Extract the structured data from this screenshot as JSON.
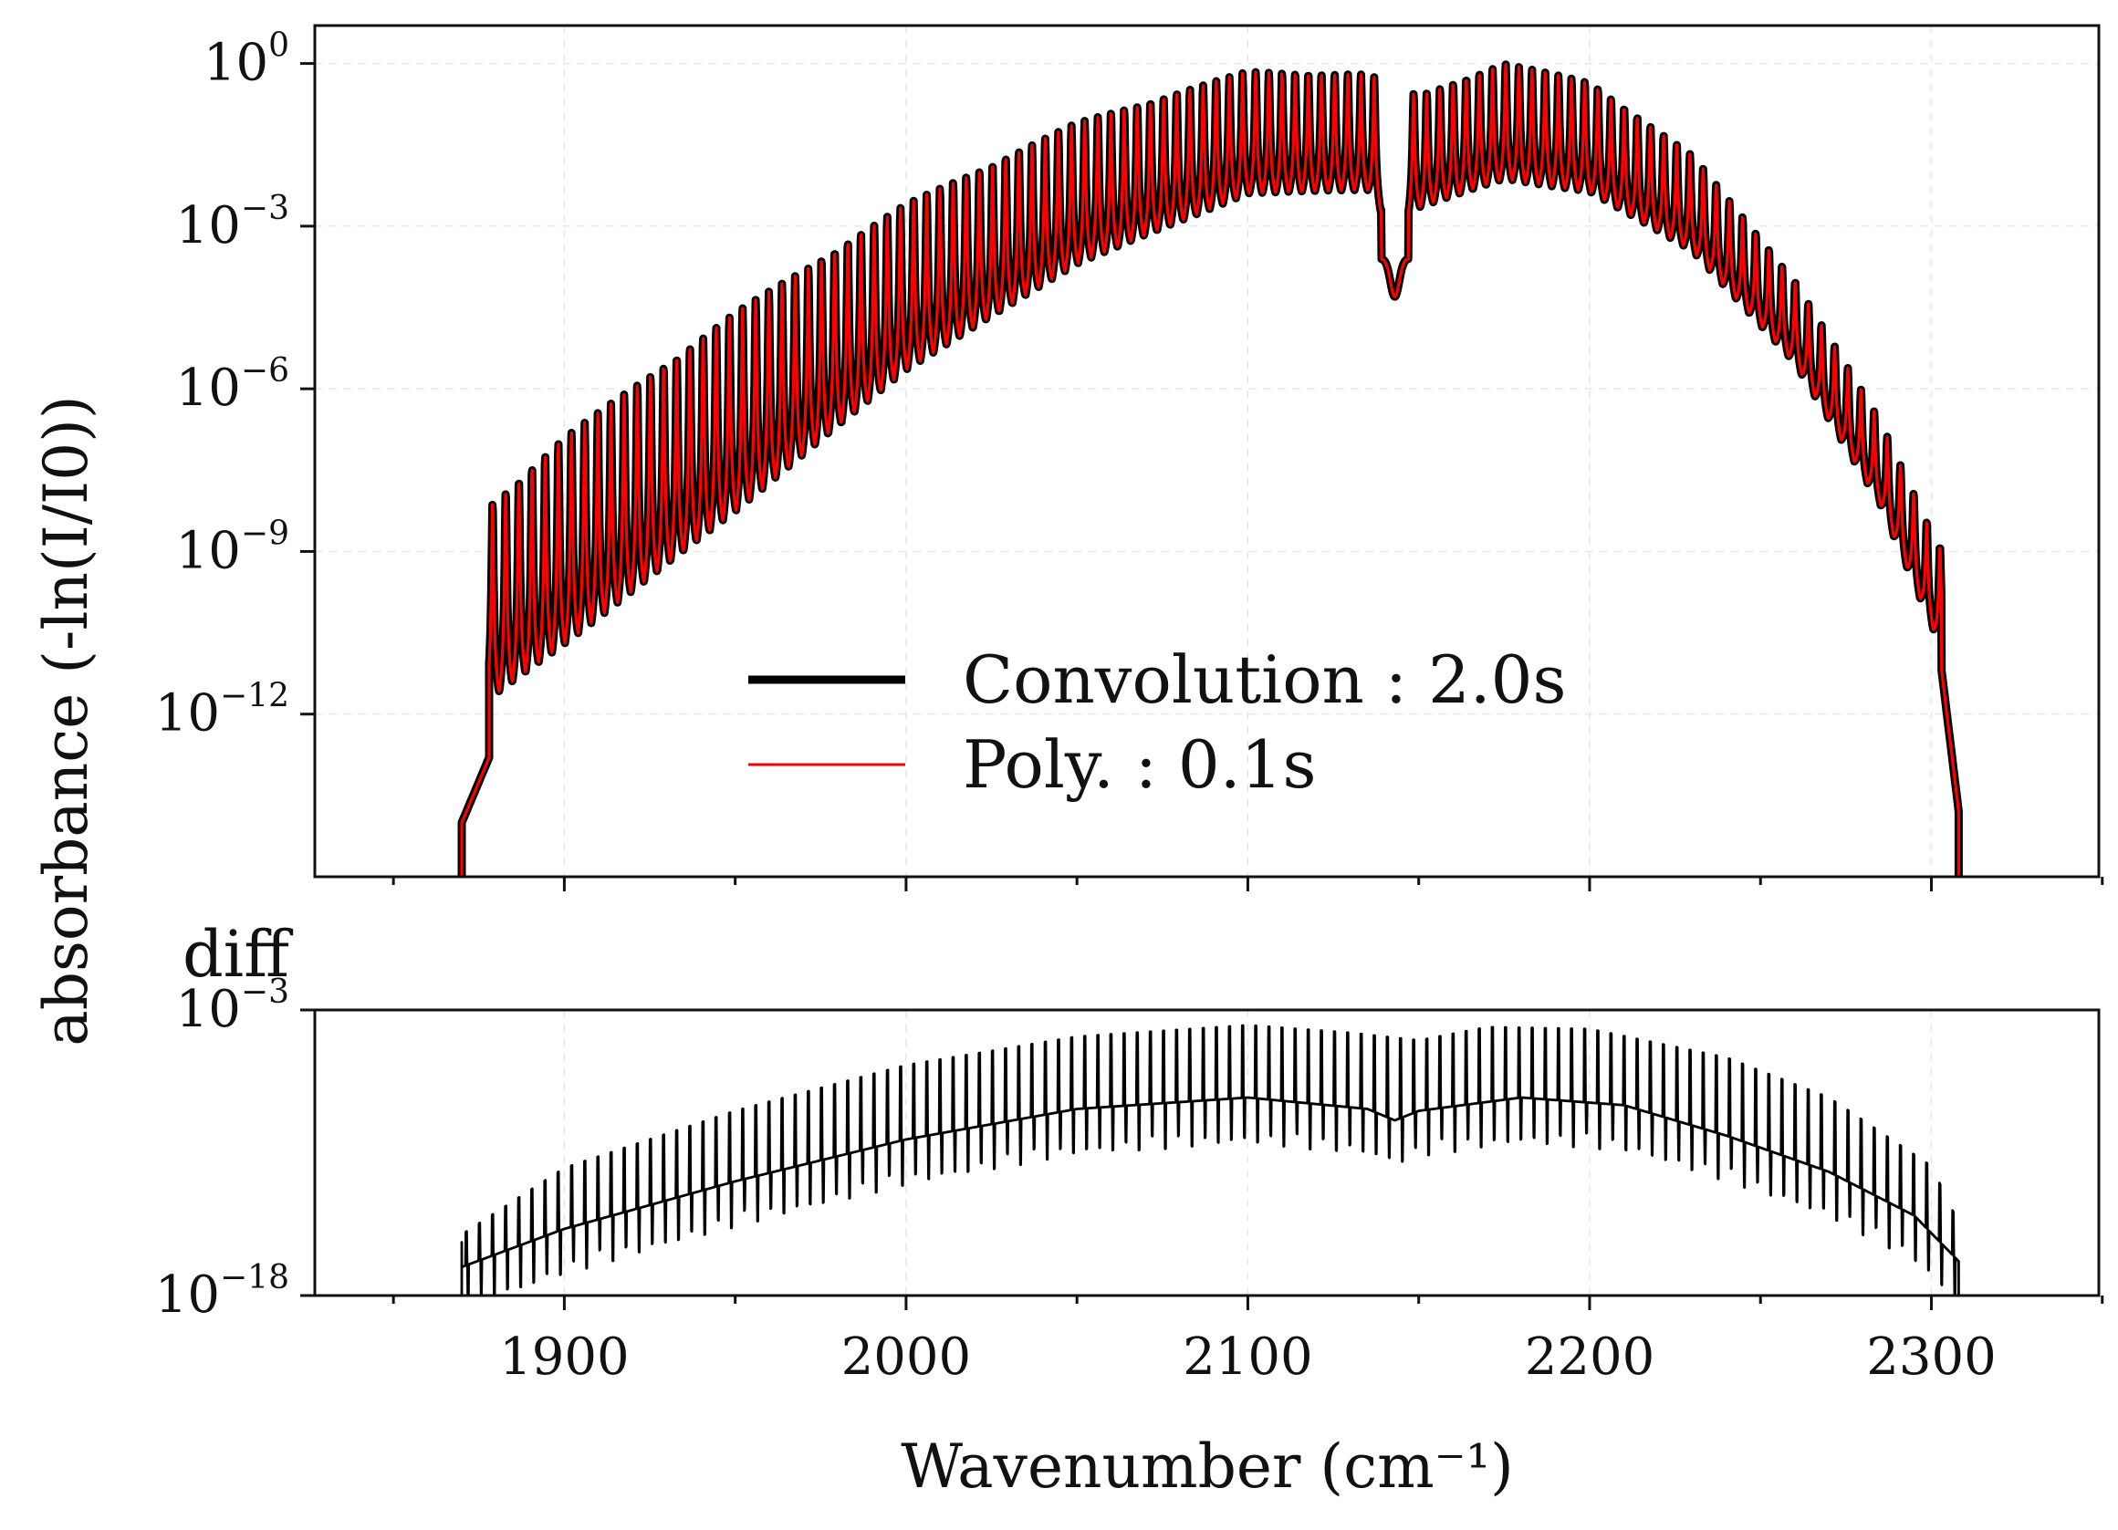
{
  "chart_data": [
    {
      "panel": "top",
      "type": "line",
      "ylabel": "absorbance (-ln(I/I0))",
      "y_scale": "log",
      "ylim_exponent": [
        -15,
        0.7
      ],
      "xlim": [
        1827,
        2349
      ],
      "x_ticks_shared": [
        1900,
        2000,
        2100,
        2200,
        2300
      ],
      "y_ticks": [
        {
          "base": "10",
          "exp": "0",
          "value": 1
        },
        {
          "base": "10",
          "exp": "−3",
          "value": 0.001
        },
        {
          "base": "10",
          "exp": "−6",
          "value": 1e-06
        },
        {
          "base": "10",
          "exp": "−9",
          "value": 1e-09
        },
        {
          "base": "10",
          "exp": "−12",
          "value": 1e-12
        }
      ],
      "grid": true,
      "legend_position": "lower-center",
      "series": [
        {
          "name": "Convolution : 2.0s",
          "color": "#000000",
          "linewidth": "thick"
        },
        {
          "name": "Poly. : 0.1s",
          "color": "#ff0000",
          "linewidth": "thin"
        }
      ],
      "band": {
        "description_values": "rovibrational absorption band, peak absorbance values (log10) per line",
        "line_spacing": 3.85,
        "band_center": 2143,
        "band_start": 1870,
        "band_end": 2308,
        "peak_envelope_log10": [
          {
            "x": 1879,
            "y": -8.1
          },
          {
            "x": 1900,
            "y": -6.9
          },
          {
            "x": 1950,
            "y": -4.6
          },
          {
            "x": 2000,
            "y": -2.6
          },
          {
            "x": 2050,
            "y": -1.1
          },
          {
            "x": 2100,
            "y": -0.15
          },
          {
            "x": 2135,
            "y": -0.2
          },
          {
            "x": 2150,
            "y": -0.6
          },
          {
            "x": 2175,
            "y": 0.0
          },
          {
            "x": 2200,
            "y": -0.35
          },
          {
            "x": 2230,
            "y": -1.7
          },
          {
            "x": 2260,
            "y": -4.0
          },
          {
            "x": 2285,
            "y": -6.6
          },
          {
            "x": 2302,
            "y": -8.9
          }
        ],
        "valley_envelope_log10": [
          {
            "x": 1879,
            "y": -12.8
          },
          {
            "x": 1900,
            "y": -11.9
          },
          {
            "x": 1950,
            "y": -9.4
          },
          {
            "x": 2000,
            "y": -6.6
          },
          {
            "x": 2050,
            "y": -4.5
          },
          {
            "x": 2100,
            "y": -3.1
          },
          {
            "x": 2135,
            "y": -3.0
          },
          {
            "x": 2143,
            "y": -4.0
          },
          {
            "x": 2150,
            "y": -3.3
          },
          {
            "x": 2175,
            "y": -2.8
          },
          {
            "x": 2200,
            "y": -3.0
          },
          {
            "x": 2230,
            "y": -4.0
          },
          {
            "x": 2260,
            "y": -6.0
          },
          {
            "x": 2285,
            "y": -8.6
          },
          {
            "x": 2302,
            "y": -11.2
          }
        ]
      }
    },
    {
      "panel": "bottom",
      "type": "line",
      "title": "diff",
      "xlabel": "Wavenumber (cm⁻¹)",
      "y_scale": "log",
      "ylim_exponent": [
        -18,
        -3
      ],
      "xlim": [
        1827,
        2349
      ],
      "x_ticks": [
        1900,
        2000,
        2100,
        2200,
        2300
      ],
      "y_ticks": [
        {
          "base": "10",
          "exp": "−3",
          "value": 0.001
        },
        {
          "base": "10",
          "exp": "−18",
          "value": 1e-18
        }
      ],
      "grid": true,
      "series": [
        {
          "color": "#000000",
          "baseline_log10": [
            {
              "x": 1870,
              "y": -16.5
            },
            {
              "x": 1900,
              "y": -14.5
            },
            {
              "x": 1950,
              "y": -12.0
            },
            {
              "x": 2000,
              "y": -9.8
            },
            {
              "x": 2050,
              "y": -8.2
            },
            {
              "x": 2100,
              "y": -7.6
            },
            {
              "x": 2135,
              "y": -8.2
            },
            {
              "x": 2143,
              "y": -8.8
            },
            {
              "x": 2150,
              "y": -8.3
            },
            {
              "x": 2180,
              "y": -7.6
            },
            {
              "x": 2210,
              "y": -8.0
            },
            {
              "x": 2240,
              "y": -9.6
            },
            {
              "x": 2270,
              "y": -11.5
            },
            {
              "x": 2295,
              "y": -13.8
            },
            {
              "x": 2308,
              "y": -16.2
            }
          ],
          "spike_top_log10": [
            {
              "x": 1870,
              "y": -14.8
            },
            {
              "x": 1900,
              "y": -11.3
            },
            {
              "x": 1950,
              "y": -8.3
            },
            {
              "x": 2000,
              "y": -5.9
            },
            {
              "x": 2050,
              "y": -4.4
            },
            {
              "x": 2100,
              "y": -3.8
            },
            {
              "x": 2130,
              "y": -4.2
            },
            {
              "x": 2150,
              "y": -4.6
            },
            {
              "x": 2170,
              "y": -3.9
            },
            {
              "x": 2200,
              "y": -4.0
            },
            {
              "x": 2240,
              "y": -5.5
            },
            {
              "x": 2270,
              "y": -7.6
            },
            {
              "x": 2300,
              "y": -11.2
            },
            {
              "x": 2308,
              "y": -14.2
            }
          ]
        }
      ]
    }
  ]
}
